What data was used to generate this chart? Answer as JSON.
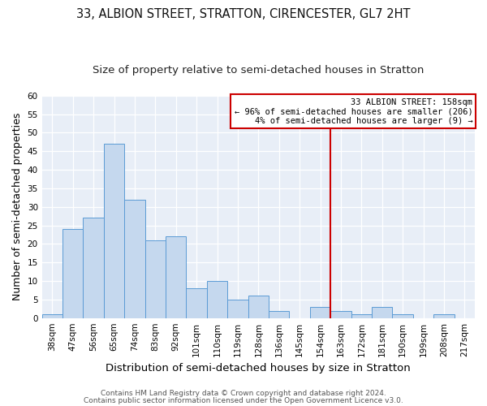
{
  "title": "33, ALBION STREET, STRATTON, CIRENCESTER, GL7 2HT",
  "subtitle": "Size of property relative to semi-detached houses in Stratton",
  "xlabel": "Distribution of semi-detached houses by size in Stratton",
  "ylabel": "Number of semi-detached properties",
  "categories": [
    "38sqm",
    "47sqm",
    "56sqm",
    "65sqm",
    "74sqm",
    "83sqm",
    "92sqm",
    "101sqm",
    "110sqm",
    "119sqm",
    "128sqm",
    "136sqm",
    "145sqm",
    "154sqm",
    "163sqm",
    "172sqm",
    "181sqm",
    "190sqm",
    "199sqm",
    "208sqm",
    "217sqm"
  ],
  "values": [
    1,
    24,
    27,
    47,
    32,
    21,
    22,
    8,
    10,
    5,
    6,
    2,
    0,
    3,
    2,
    1,
    3,
    1,
    0,
    1,
    0
  ],
  "bar_color": "#c5d8ee",
  "bar_edge_color": "#5b9bd5",
  "vline_color": "#cc0000",
  "vline_pos": 13.5,
  "annotation_title": "33 ALBION STREET: 158sqm",
  "annotation_line1": "← 96% of semi-detached houses are smaller (206)",
  "annotation_line2": "4% of semi-detached houses are larger (9) →",
  "annotation_box_color": "#ffffff",
  "annotation_box_edge_color": "#cc0000",
  "ylim": [
    0,
    60
  ],
  "yticks": [
    0,
    5,
    10,
    15,
    20,
    25,
    30,
    35,
    40,
    45,
    50,
    55,
    60
  ],
  "footer1": "Contains HM Land Registry data © Crown copyright and database right 2024.",
  "footer2": "Contains public sector information licensed under the Open Government Licence v3.0.",
  "bg_color": "#ffffff",
  "plot_bg_color": "#e8eef7",
  "title_fontsize": 10.5,
  "subtitle_fontsize": 9.5,
  "axis_label_fontsize": 9,
  "tick_fontsize": 7.5,
  "footer_fontsize": 6.5
}
